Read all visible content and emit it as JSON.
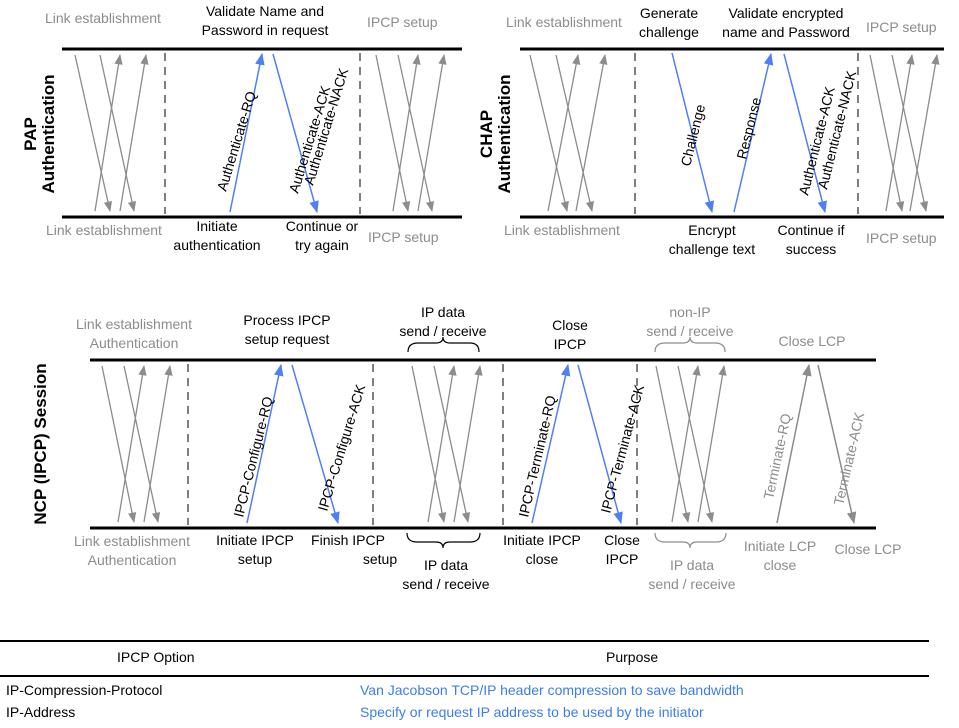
{
  "pap": {
    "title_line1": "PAP",
    "title_line2": "Authentication",
    "top_left": "Link establishment",
    "top_mid_line1": "Validate Name and",
    "top_mid_line2": "Password in request",
    "top_right": "IPCP setup",
    "bottom_left": "Link establishment",
    "bottom_mid_line1": "Initiate",
    "bottom_mid_line2": "authentication",
    "bottom_right_line1": "Continue or",
    "bottom_right_line2": "try again",
    "bottom_far": "IPCP setup",
    "msg_request": "Authenticate-RQ",
    "msg_ack": "Authenticate-ACK",
    "msg_nack": "Authenticate-NACK"
  },
  "chap": {
    "title_line1": "CHAP",
    "title_line2": "Authentication",
    "top_left": "Link establishment",
    "top_gen_line1": "Generate",
    "top_gen_line2": "challenge",
    "top_val_line1": "Validate encrypted",
    "top_val_line2": "name and Password",
    "top_right": "IPCP setup",
    "bottom_left": "Link establishment",
    "bottom_enc_line1": "Encrypt",
    "bottom_enc_line2": "challenge text",
    "bottom_cont_line1": "Continue if",
    "bottom_cont_line2": "success",
    "bottom_far": "IPCP setup",
    "msg_challenge": "Challenge",
    "msg_response": "Response",
    "msg_ack": "Authenticate-ACK",
    "msg_nack": "Authenticate-NACK"
  },
  "ncp": {
    "title": "NCP (IPCP) Session",
    "top_link_line1": "Link establishment",
    "top_link_line2": "Authentication",
    "top_process_line1": "Process IPCP",
    "top_process_line2": "setup request",
    "top_ipdata_line1": "IP data",
    "top_ipdata_line2": "send / receive",
    "top_close_line1": "Close",
    "top_close_line2": "IPCP",
    "top_nonip_line1": "non-IP",
    "top_nonip_line2": "send / receive",
    "top_closelcp": "Close LCP",
    "bottom_link_line1": "Link establishment",
    "bottom_link_line2": "Authentication",
    "bottom_init_line1": "Initiate IPCP",
    "bottom_init_line2": "setup",
    "bottom_finish": "Finish IPCP",
    "bottom_finish2": "setup",
    "bottom_ipdata_line1": "IP data",
    "bottom_ipdata_line2": "send / receive",
    "bottom_initclose_line1": "Initiate IPCP",
    "bottom_initclose_line2": "close",
    "bottom_close_line1": "Close",
    "bottom_close_line2": "IPCP",
    "bottom_ipdata2_line1": "IP data",
    "bottom_ipdata2_line2": "send / receive",
    "bottom_initlcp_line1": "Initiate LCP",
    "bottom_initlcp_line2": "close",
    "bottom_closelcp": "Close LCP",
    "msg_configure_rq": "IPCP-Configure-RQ",
    "msg_configure_ack": "IPCP-Configure-ACK",
    "msg_terminate_rq": "IPCP-Terminate-RQ",
    "msg_terminate_ack": "IPCP-Terminate-ACK",
    "msg_lcp_terminate_rq": "Terminate-RQ",
    "msg_lcp_terminate_ack": "Terminate-ACK"
  },
  "table": {
    "col_option": "IPCP Option",
    "col_purpose": "Purpose",
    "rows": [
      {
        "option": "IP-Compression-Protocol",
        "purpose": "Van Jacobson TCP/IP header compression to save bandwidth"
      },
      {
        "option": "IP-Address",
        "purpose": "Specify or request IP address to be used by the initiator"
      }
    ]
  },
  "colors": {
    "accent_blue": "#4f7ff7",
    "purpose_text": "#3a7ded",
    "gray": "#8c8c8c",
    "line": "#000000"
  }
}
